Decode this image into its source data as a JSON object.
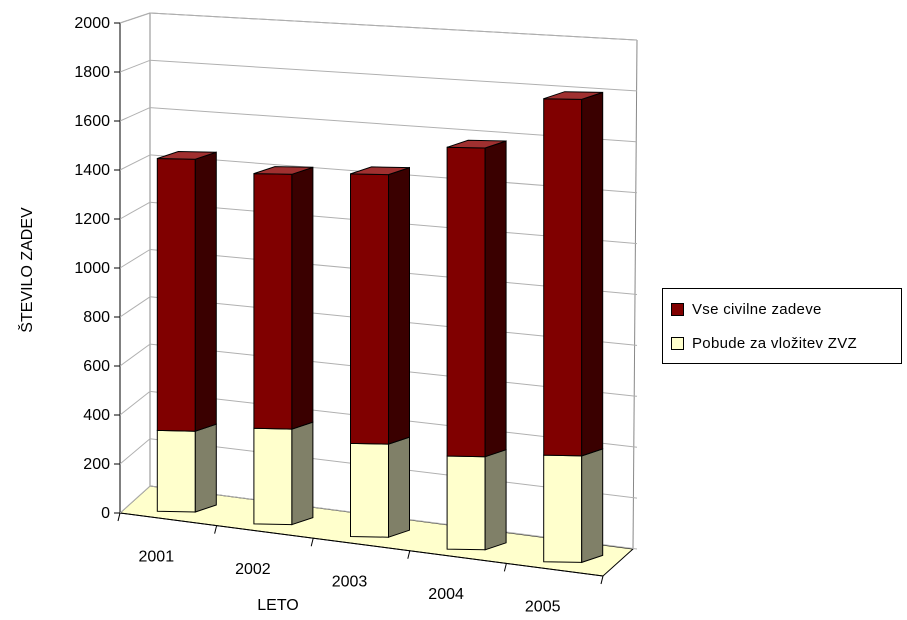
{
  "chart_data": {
    "type": "bar",
    "stacked": true,
    "three_d": true,
    "categories": [
      "2001",
      "2002",
      "2003",
      "2004",
      "2005"
    ],
    "series": [
      {
        "name": "Pobude za vložitev ZVZ",
        "values": [
          330,
          390,
          380,
          380,
          435
        ],
        "color": "#FFFFCC"
      },
      {
        "name": "Vse civilne zadeve",
        "values": [
          1110,
          1040,
          1100,
          1260,
          1455
        ],
        "color": "#800000"
      }
    ],
    "xlabel": "LETO",
    "ylabel": "ŠTEVILO ZADEV",
    "ylim": [
      0,
      2000
    ],
    "yticks": [
      "0",
      "200",
      "400",
      "600",
      "800",
      "1000",
      "1200",
      "1400",
      "1600",
      "1800",
      "2000"
    ],
    "grid": true,
    "legend_position": "right",
    "floor_color": "#FFFFCC"
  }
}
